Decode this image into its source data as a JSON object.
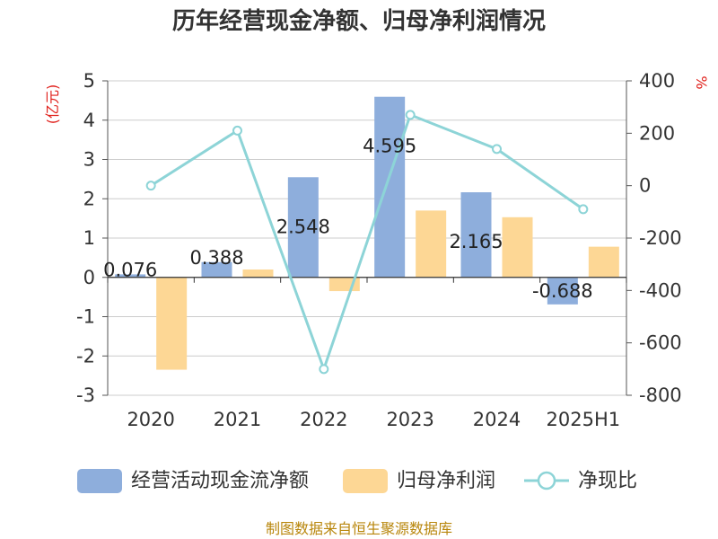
{
  "chart_data": {
    "type": "bar",
    "title": "历年经营现金净额、归母净利润情况",
    "categories": [
      "2020",
      "2021",
      "2022",
      "2023",
      "2024",
      "2025H1"
    ],
    "series": [
      {
        "name": "经营活动现金流净额",
        "kind": "bar",
        "axis": "left",
        "color": "#8eaedc",
        "values": [
          0.076,
          0.388,
          2.548,
          4.595,
          2.165,
          -0.688
        ],
        "labels": [
          "0.076",
          "0.388",
          "2.548",
          "4.595",
          "2.165",
          "-0.688"
        ]
      },
      {
        "name": "归母净利润",
        "kind": "bar",
        "axis": "left",
        "color": "#fdd795",
        "values": [
          -2.35,
          0.2,
          -0.35,
          1.7,
          1.53,
          0.78
        ]
      },
      {
        "name": "净现比",
        "kind": "line",
        "axis": "right",
        "color": "#8dd4d7",
        "values": [
          0,
          210,
          -700,
          270,
          140,
          -90
        ]
      }
    ],
    "y_left": {
      "unit": "(亿元)",
      "min": -3,
      "max": 5,
      "ticks": [
        "5",
        "4",
        "3",
        "2",
        "1",
        "0",
        "-1",
        "-2",
        "-3"
      ]
    },
    "y_right": {
      "unit": "%",
      "min": -800,
      "max": 400,
      "ticks": [
        "400",
        "200",
        "0",
        "-200",
        "-400",
        "-600",
        "-800"
      ]
    },
    "grid": true,
    "legend": "bottom",
    "source": "制图数据来自恒生聚源数据库"
  }
}
